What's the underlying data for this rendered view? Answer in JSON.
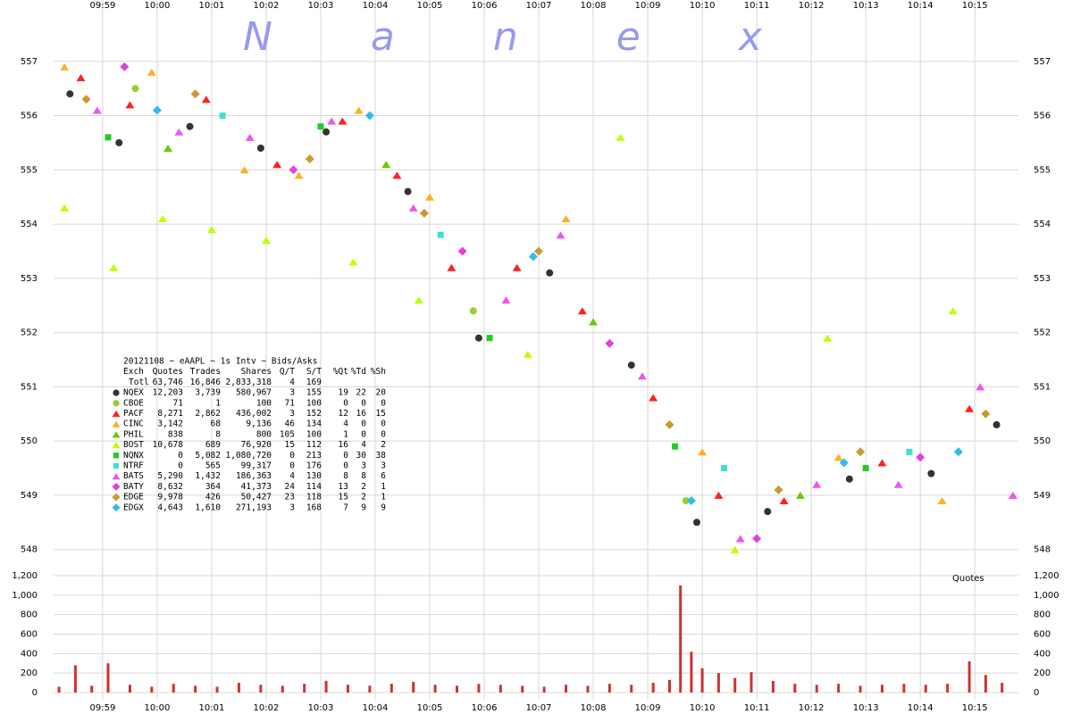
{
  "chart_data": [
    {
      "type": "scatter",
      "title": "Nanex",
      "xlim": [
        598.1,
        615.8
      ],
      "xticks": [
        {
          "value": 599,
          "label": "09:59"
        },
        {
          "value": 600,
          "label": "10:00"
        },
        {
          "value": 601,
          "label": "10:01"
        },
        {
          "value": 602,
          "label": "10:02"
        },
        {
          "value": 603,
          "label": "10:03"
        },
        {
          "value": 604,
          "label": "10:04"
        },
        {
          "value": 605,
          "label": "10:05"
        },
        {
          "value": 606,
          "label": "10:06"
        },
        {
          "value": 607,
          "label": "10:07"
        },
        {
          "value": 608,
          "label": "10:08"
        },
        {
          "value": 609,
          "label": "10:09"
        },
        {
          "value": 610,
          "label": "10:10"
        },
        {
          "value": 611,
          "label": "10:11"
        },
        {
          "value": 612,
          "label": "10:12"
        },
        {
          "value": 613,
          "label": "10:13"
        },
        {
          "value": 614,
          "label": "10:14"
        },
        {
          "value": 615,
          "label": "10:15"
        }
      ],
      "ylim": [
        547.6,
        558.0
      ],
      "yticks": [
        548,
        549,
        550,
        551,
        552,
        553,
        554,
        555,
        556,
        557
      ],
      "grid": true,
      "series": [
        {
          "name": "NQEX",
          "color": "#333333",
          "marker": "circle",
          "x": [
            598.4,
            599.3,
            600.6,
            601.9,
            603.1,
            604.6,
            605.9,
            607.2,
            608.7,
            609.9,
            611.2,
            612.7,
            614.2,
            615.4
          ],
          "values": [
            556.4,
            555.5,
            555.8,
            555.4,
            555.7,
            554.6,
            551.9,
            553.1,
            551.4,
            548.5,
            548.7,
            549.3,
            549.4,
            550.3
          ]
        },
        {
          "name": "CBOE",
          "color": "#9acd32",
          "marker": "circle",
          "x": [
            599.6,
            605.8,
            609.7
          ],
          "values": [
            556.5,
            552.4,
            548.9
          ]
        },
        {
          "name": "PACF",
          "color": "#ff2020",
          "marker": "triangle",
          "x": [
            598.6,
            599.5,
            600.9,
            602.2,
            603.4,
            604.4,
            605.4,
            606.6,
            607.8,
            609.1,
            610.3,
            611.5,
            613.3,
            614.9
          ],
          "values": [
            556.7,
            556.2,
            556.3,
            555.1,
            555.9,
            554.9,
            553.2,
            553.2,
            552.4,
            550.8,
            549.0,
            548.9,
            549.6,
            550.6
          ]
        },
        {
          "name": "CINC",
          "color": "#ffb020",
          "marker": "triangle",
          "x": [
            598.3,
            599.9,
            601.6,
            602.6,
            603.7,
            605.0,
            607.5,
            610.0,
            612.5,
            614.4
          ],
          "values": [
            556.9,
            556.8,
            555.0,
            554.9,
            556.1,
            554.5,
            554.1,
            549.8,
            549.7,
            548.9
          ]
        },
        {
          "name": "PHIL",
          "color": "#66cc00",
          "marker": "triangle",
          "x": [
            600.2,
            604.2,
            608.0,
            611.8
          ],
          "values": [
            555.4,
            555.1,
            552.2,
            549.0
          ]
        },
        {
          "name": "BOST",
          "color": "#bfff00",
          "marker": "triangle",
          "x": [
            598.3,
            599.2,
            600.1,
            601.0,
            602.0,
            603.6,
            604.8,
            606.8,
            608.5,
            610.6,
            612.3,
            614.6
          ],
          "values": [
            554.3,
            553.2,
            554.1,
            553.9,
            553.7,
            553.3,
            552.6,
            551.6,
            555.6,
            548.0,
            551.9,
            552.4
          ]
        },
        {
          "name": "NQNX",
          "color": "#22cc22",
          "marker": "square",
          "x": [
            599.1,
            603.0,
            606.1,
            609.5,
            613.0
          ],
          "values": [
            555.6,
            555.8,
            551.9,
            549.9,
            549.5
          ]
        },
        {
          "name": "NTRF",
          "color": "#40e0d0",
          "marker": "square",
          "x": [
            601.2,
            605.2,
            610.4,
            613.8
          ],
          "values": [
            556.0,
            553.8,
            549.5,
            549.8
          ]
        },
        {
          "name": "BATS",
          "color": "#ee55ee",
          "marker": "triangle",
          "x": [
            598.9,
            600.4,
            601.7,
            603.2,
            604.7,
            606.4,
            607.4,
            608.9,
            610.7,
            612.1,
            613.6,
            615.1,
            615.7
          ],
          "values": [
            556.1,
            555.7,
            555.6,
            555.9,
            554.3,
            552.6,
            553.8,
            551.2,
            548.2,
            549.2,
            549.2,
            551.0,
            549.0
          ]
        },
        {
          "name": "BATY",
          "color": "#dd44dd",
          "marker": "diamond",
          "x": [
            599.4,
            602.5,
            605.6,
            608.3,
            611.0,
            614.0
          ],
          "values": [
            556.9,
            555.0,
            553.5,
            551.8,
            548.2,
            549.7
          ]
        },
        {
          "name": "EDGE",
          "color": "#cc9933",
          "marker": "diamond",
          "x": [
            598.7,
            600.7,
            602.8,
            604.9,
            607.0,
            609.4,
            611.4,
            612.9,
            615.2
          ],
          "values": [
            556.3,
            556.4,
            555.2,
            554.2,
            553.5,
            550.3,
            549.1,
            549.8,
            550.5
          ]
        },
        {
          "name": "EDGX",
          "color": "#33bbee",
          "marker": "diamond",
          "x": [
            600.0,
            603.9,
            606.9,
            609.8,
            612.6,
            614.7
          ],
          "values": [
            556.1,
            556.0,
            553.4,
            548.9,
            549.6,
            549.8
          ]
        }
      ],
      "stats": {
        "heading": "20121108 ~ eAAPL ~ 1s Intv ~ Bids/Asks",
        "columns": [
          "Exch",
          "Quotes",
          "Trades",
          "Shares",
          "Q/T",
          "S/T",
          "%Qt",
          "%Td",
          "%Sh"
        ],
        "total": [
          "Totl",
          "63,746",
          "16,846",
          "2,833,318",
          "4",
          "169"
        ],
        "rows": [
          [
            "12,203",
            "3,739",
            "580,967",
            "3",
            "155",
            "19",
            "22",
            "20"
          ],
          [
            "71",
            "1",
            "100",
            "71",
            "100",
            "0",
            "0",
            "0"
          ],
          [
            "8,271",
            "2,862",
            "436,002",
            "3",
            "152",
            "12",
            "16",
            "15"
          ],
          [
            "3,142",
            "68",
            "9,136",
            "46",
            "134",
            "4",
            "0",
            "0"
          ],
          [
            "838",
            "8",
            "800",
            "105",
            "100",
            "1",
            "0",
            "0"
          ],
          [
            "10,678",
            "689",
            "76,920",
            "15",
            "112",
            "16",
            "4",
            "2"
          ],
          [
            "0",
            "5,082",
            "1,080,720",
            "0",
            "213",
            "0",
            "30",
            "38"
          ],
          [
            "0",
            "565",
            "99,317",
            "0",
            "176",
            "0",
            "3",
            "3"
          ],
          [
            "5,290",
            "1,432",
            "186,363",
            "4",
            "130",
            "8",
            "8",
            "6"
          ],
          [
            "8,632",
            "364",
            "41,373",
            "24",
            "114",
            "13",
            "2",
            "1"
          ],
          [
            "9,978",
            "426",
            "50,427",
            "23",
            "118",
            "15",
            "2",
            "1"
          ],
          [
            "4,643",
            "1,610",
            "271,193",
            "3",
            "168",
            "7",
            "9",
            "9"
          ]
        ]
      }
    },
    {
      "type": "bar",
      "title": "Quotes",
      "color": "#cc3333",
      "xlim": [
        598.1,
        615.8
      ],
      "xticks": [
        {
          "value": 599,
          "label": "09:59"
        },
        {
          "value": 600,
          "label": "10:00"
        },
        {
          "value": 601,
          "label": "10:01"
        },
        {
          "value": 602,
          "label": "10:02"
        },
        {
          "value": 603,
          "label": "10:03"
        },
        {
          "value": 604,
          "label": "10:04"
        },
        {
          "value": 605,
          "label": "10:05"
        },
        {
          "value": 606,
          "label": "10:06"
        },
        {
          "value": 607,
          "label": "10:07"
        },
        {
          "value": 608,
          "label": "10:08"
        },
        {
          "value": 609,
          "label": "10:09"
        },
        {
          "value": 610,
          "label": "10:10"
        },
        {
          "value": 611,
          "label": "10:11"
        },
        {
          "value": 612,
          "label": "10:12"
        },
        {
          "value": 613,
          "label": "10:13"
        },
        {
          "value": 614,
          "label": "10:14"
        },
        {
          "value": 615,
          "label": "10:15"
        }
      ],
      "ylim": [
        0,
        1200
      ],
      "yticks": [
        0,
        200,
        400,
        600,
        800,
        {
          "value": 1000,
          "label": "1,000"
        },
        {
          "value": 1200,
          "label": "1,200"
        }
      ],
      "grid": true,
      "x": [
        598.2,
        598.5,
        598.8,
        599.1,
        599.5,
        599.9,
        600.3,
        600.7,
        601.1,
        601.5,
        601.9,
        602.3,
        602.7,
        603.1,
        603.5,
        603.9,
        604.3,
        604.7,
        605.1,
        605.5,
        605.9,
        606.3,
        606.7,
        607.1,
        607.5,
        607.9,
        608.3,
        608.7,
        609.1,
        609.4,
        609.6,
        609.8,
        610.0,
        610.3,
        610.6,
        610.9,
        611.3,
        611.7,
        612.1,
        612.5,
        612.9,
        613.3,
        613.7,
        614.1,
        614.5,
        614.9,
        615.2,
        615.5
      ],
      "values": [
        60,
        280,
        70,
        300,
        80,
        60,
        90,
        70,
        60,
        100,
        80,
        70,
        90,
        120,
        80,
        70,
        90,
        110,
        80,
        70,
        90,
        80,
        70,
        60,
        80,
        70,
        90,
        80,
        100,
        130,
        1100,
        420,
        250,
        200,
        150,
        210,
        120,
        90,
        80,
        90,
        70,
        80,
        90,
        80,
        90,
        320,
        180,
        100
      ]
    }
  ]
}
